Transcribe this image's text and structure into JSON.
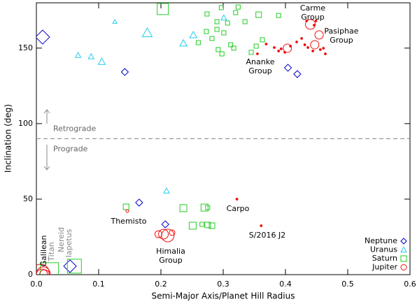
{
  "chart_data": {
    "type": "scatter",
    "xlabel": "Semi-Major Axis/Planet Hill Radius",
    "ylabel": "Inclination (deg)",
    "xlim": [
      0,
      0.6
    ],
    "ylim": [
      0,
      180
    ],
    "xticks": [
      {
        "value": 0,
        "label": "0.0"
      },
      0.1,
      0.2,
      0.3,
      0.4,
      0.5,
      0.6
    ],
    "yticks": [
      0,
      50,
      100,
      150
    ],
    "legend": "lower right",
    "reference_line": {
      "value": 90,
      "labels": [
        "Retrograde",
        "Prograde"
      ]
    },
    "annotations": [
      [
        "Carme",
        "Group"
      ],
      [
        "Pasiphae",
        "Group"
      ],
      [
        "Ananke",
        "Group"
      ],
      [
        "Themisto"
      ],
      [
        "Carpo"
      ],
      [
        "S/2016 J2"
      ],
      [
        "Himalia",
        "Group"
      ],
      [
        "Galilean"
      ],
      [
        "Titan"
      ],
      [
        "Nereid"
      ],
      [
        "Iapetus"
      ]
    ],
    "series": [
      {
        "name": "Neptune",
        "color": "#0000cc",
        "marker": "diamond",
        "x": [
          0.01,
          0.142,
          0.404,
          0.419,
          0.165,
          0.207,
          0.054
        ],
        "values": [
          157.3,
          134.2,
          137.0,
          132.8,
          47.7,
          33.3,
          5.6
        ],
        "sizes": [
          10,
          5,
          5,
          5,
          5,
          5,
          9
        ]
      },
      {
        "name": "Uranus",
        "color": "#22ccee",
        "marker": "triangle",
        "x": [
          0.067,
          0.105,
          0.088,
          0.126,
          0.178,
          0.236,
          0.252,
          0.301,
          0.209
        ],
        "values": [
          145.3,
          141.0,
          144.4,
          167.5,
          160.1,
          153.2,
          158.7,
          170.1,
          55.5
        ],
        "sizes": [
          4,
          5,
          4,
          3,
          7,
          5,
          5,
          4,
          4
        ]
      },
      {
        "name": "Saturn",
        "color": "#22cc22",
        "marker": "square",
        "x": [
          0.203,
          0.274,
          0.297,
          0.32,
          0.324,
          0.357,
          0.389,
          0.29,
          0.307,
          0.335,
          0.273,
          0.29,
          0.301,
          0.282,
          0.26,
          0.312,
          0.317,
          0.292,
          0.298,
          0.363,
          0.353,
          0.345,
          0.144,
          0.236,
          0.27,
          0.275,
          0.282,
          0.251,
          0.266,
          0.275,
          0.061,
          0.021
        ],
        "values": [
          175.9,
          172.6,
          176.8,
          173.5,
          177.2,
          172.1,
          171.6,
          167.5,
          166.6,
          167.5,
          161.0,
          162.4,
          160.1,
          156.4,
          153.6,
          152.2,
          150.0,
          149.0,
          146.2,
          155.5,
          151.3,
          147.2,
          44.9,
          44.0,
          44.4,
          44.4,
          32.4,
          32.4,
          33.3,
          32.9,
          5.6,
          1.9
        ],
        "sizes": [
          8,
          3,
          3,
          3,
          3,
          4,
          3,
          3,
          3,
          3,
          3,
          3,
          3,
          3,
          3,
          3,
          3,
          3,
          3,
          3,
          3,
          3,
          4,
          5,
          5,
          3,
          4,
          5,
          3,
          4,
          10,
          13
        ]
      },
      {
        "name": "Jupiter",
        "color": "#ee1111",
        "marker": "circle",
        "x": [
          0.355,
          0.369,
          0.382,
          0.389,
          0.393,
          0.399,
          0.408,
          0.418,
          0.426,
          0.431,
          0.436,
          0.444,
          0.456,
          0.461,
          0.464,
          0.434,
          0.449,
          0.446,
          0.403,
          0.44,
          0.454,
          0.447,
          0.007,
          0.011,
          0.009,
          0.013,
          0.146,
          0.322,
          0.361,
          0.211,
          0.204,
          0.196,
          0.218
        ],
        "values": [
          146.2,
          152.7,
          150.4,
          148.1,
          149.5,
          147.2,
          151.3,
          154.1,
          156.4,
          152.2,
          150.4,
          148.1,
          149.0,
          149.9,
          146.2,
          168.0,
          168.0,
          165.2,
          149.9,
          165.7,
          158.7,
          152.2,
          1.4,
          0.5,
          0.0,
          0.0,
          42.1,
          50.0,
          32.4,
          25.9,
          26.8,
          26.8,
          27.8
        ],
        "sizes": [
          1,
          1,
          1,
          1,
          1,
          1,
          1,
          1,
          1,
          1,
          1,
          1,
          1,
          1,
          1,
          1,
          1,
          1,
          6,
          7,
          6,
          6,
          12,
          10,
          8,
          7,
          2,
          1,
          1,
          9,
          7,
          5,
          4
        ]
      }
    ]
  }
}
